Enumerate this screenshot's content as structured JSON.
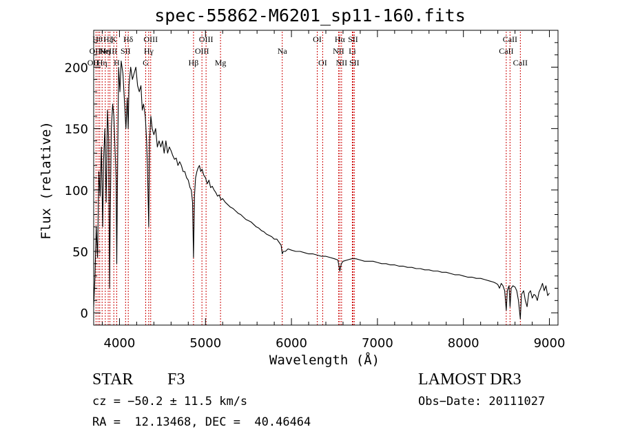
{
  "chart_data": {
    "type": "line",
    "title": "spec-55862-M6201_sp11-160.fits",
    "xlabel": "Wavelength (Å)",
    "ylabel": "Flux (relative)",
    "xlim": [
      3700,
      9100
    ],
    "ylim": [
      -10,
      230
    ],
    "xticks": [
      4000,
      5000,
      6000,
      7000,
      8000,
      9000
    ],
    "yticks": [
      0,
      50,
      100,
      150,
      200
    ],
    "x_minor_step": 200,
    "y_minor_step": 10,
    "series": [
      {
        "name": "flux",
        "points": [
          [
            3700,
            5
          ],
          [
            3715,
            30
          ],
          [
            3730,
            70
          ],
          [
            3745,
            45
          ],
          [
            3760,
            115
          ],
          [
            3775,
            95
          ],
          [
            3790,
            135
          ],
          [
            3805,
            70
          ],
          [
            3815,
            125
          ],
          [
            3830,
            150
          ],
          [
            3845,
            90
          ],
          [
            3860,
            165
          ],
          [
            3875,
            140
          ],
          [
            3885,
            20
          ],
          [
            3890,
            60
          ],
          [
            3905,
            150
          ],
          [
            3920,
            170
          ],
          [
            3935,
            160
          ],
          [
            3950,
            130
          ],
          [
            3960,
            110
          ],
          [
            3968,
            40
          ],
          [
            3975,
            95
          ],
          [
            3990,
            200
          ],
          [
            4005,
            180
          ],
          [
            4020,
            205
          ],
          [
            4040,
            195
          ],
          [
            4060,
            170
          ],
          [
            4075,
            150
          ],
          [
            4090,
            175
          ],
          [
            4101,
            150
          ],
          [
            4110,
            185
          ],
          [
            4130,
            200
          ],
          [
            4150,
            190
          ],
          [
            4170,
            195
          ],
          [
            4190,
            200
          ],
          [
            4210,
            185
          ],
          [
            4230,
            180
          ],
          [
            4250,
            185
          ],
          [
            4265,
            165
          ],
          [
            4280,
            170
          ],
          [
            4300,
            160
          ],
          [
            4315,
            140
          ],
          [
            4325,
            120
          ],
          [
            4340,
            70
          ],
          [
            4350,
            140
          ],
          [
            4365,
            160
          ],
          [
            4380,
            150
          ],
          [
            4400,
            145
          ],
          [
            4420,
            150
          ],
          [
            4440,
            135
          ],
          [
            4460,
            140
          ],
          [
            4480,
            135
          ],
          [
            4500,
            140
          ],
          [
            4520,
            130
          ],
          [
            4540,
            140
          ],
          [
            4560,
            130
          ],
          [
            4580,
            135
          ],
          [
            4600,
            132
          ],
          [
            4620,
            128
          ],
          [
            4640,
            125
          ],
          [
            4660,
            126
          ],
          [
            4680,
            120
          ],
          [
            4700,
            123
          ],
          [
            4720,
            120
          ],
          [
            4740,
            115
          ],
          [
            4760,
            115
          ],
          [
            4780,
            110
          ],
          [
            4800,
            108
          ],
          [
            4820,
            102
          ],
          [
            4835,
            100
          ],
          [
            4850,
            90
          ],
          [
            4861,
            45
          ],
          [
            4872,
            95
          ],
          [
            4885,
            110
          ],
          [
            4900,
            115
          ],
          [
            4915,
            118
          ],
          [
            4930,
            120
          ],
          [
            4945,
            115
          ],
          [
            4960,
            117
          ],
          [
            4980,
            112
          ],
          [
            5000,
            110
          ],
          [
            5020,
            105
          ],
          [
            5040,
            108
          ],
          [
            5060,
            102
          ],
          [
            5080,
            103
          ],
          [
            5100,
            100
          ],
          [
            5120,
            98
          ],
          [
            5140,
            95
          ],
          [
            5160,
            96
          ],
          [
            5180,
            92
          ],
          [
            5200,
            93
          ],
          [
            5230,
            90
          ],
          [
            5260,
            88
          ],
          [
            5290,
            86
          ],
          [
            5320,
            85
          ],
          [
            5350,
            83
          ],
          [
            5380,
            81
          ],
          [
            5410,
            80
          ],
          [
            5440,
            78
          ],
          [
            5470,
            76
          ],
          [
            5500,
            75
          ],
          [
            5530,
            74
          ],
          [
            5560,
            72
          ],
          [
            5590,
            70
          ],
          [
            5620,
            69
          ],
          [
            5650,
            67
          ],
          [
            5680,
            66
          ],
          [
            5710,
            64
          ],
          [
            5740,
            63
          ],
          [
            5770,
            62
          ],
          [
            5800,
            60
          ],
          [
            5830,
            60
          ],
          [
            5860,
            57
          ],
          [
            5880,
            55
          ],
          [
            5893,
            48
          ],
          [
            5905,
            50
          ],
          [
            5930,
            50
          ],
          [
            5960,
            52
          ],
          [
            6000,
            51
          ],
          [
            6050,
            50
          ],
          [
            6100,
            50
          ],
          [
            6150,
            49
          ],
          [
            6200,
            48
          ],
          [
            6250,
            48
          ],
          [
            6300,
            47
          ],
          [
            6350,
            46
          ],
          [
            6400,
            46
          ],
          [
            6450,
            45
          ],
          [
            6500,
            44
          ],
          [
            6540,
            43
          ],
          [
            6563,
            34
          ],
          [
            6580,
            40
          ],
          [
            6600,
            42
          ],
          [
            6650,
            43
          ],
          [
            6700,
            44
          ],
          [
            6750,
            44
          ],
          [
            6800,
            43
          ],
          [
            6850,
            42
          ],
          [
            6900,
            42
          ],
          [
            6950,
            42
          ],
          [
            7000,
            41
          ],
          [
            7050,
            40
          ],
          [
            7100,
            40
          ],
          [
            7150,
            39
          ],
          [
            7200,
            39
          ],
          [
            7250,
            38
          ],
          [
            7300,
            38
          ],
          [
            7350,
            37
          ],
          [
            7400,
            37
          ],
          [
            7450,
            36
          ],
          [
            7500,
            36
          ],
          [
            7550,
            35
          ],
          [
            7600,
            35
          ],
          [
            7650,
            34
          ],
          [
            7700,
            34
          ],
          [
            7750,
            33
          ],
          [
            7800,
            33
          ],
          [
            7850,
            32
          ],
          [
            7900,
            31
          ],
          [
            7950,
            31
          ],
          [
            8000,
            30
          ],
          [
            8050,
            29
          ],
          [
            8100,
            29
          ],
          [
            8150,
            28
          ],
          [
            8200,
            28
          ],
          [
            8250,
            27
          ],
          [
            8300,
            26
          ],
          [
            8350,
            25
          ],
          [
            8380,
            24
          ],
          [
            8400,
            23
          ],
          [
            8420,
            20
          ],
          [
            8440,
            24
          ],
          [
            8460,
            22
          ],
          [
            8480,
            18
          ],
          [
            8498,
            2
          ],
          [
            8510,
            18
          ],
          [
            8530,
            22
          ],
          [
            8542,
            5
          ],
          [
            8555,
            20
          ],
          [
            8575,
            22
          ],
          [
            8600,
            21
          ],
          [
            8620,
            18
          ],
          [
            8640,
            10
          ],
          [
            8662,
            -5
          ],
          [
            8675,
            15
          ],
          [
            8700,
            18
          ],
          [
            8720,
            10
          ],
          [
            8740,
            5
          ],
          [
            8760,
            16
          ],
          [
            8780,
            18
          ],
          [
            8800,
            12
          ],
          [
            8820,
            15
          ],
          [
            8840,
            14
          ],
          [
            8860,
            10
          ],
          [
            8880,
            17
          ],
          [
            8900,
            20
          ],
          [
            8920,
            24
          ],
          [
            8940,
            18
          ],
          [
            8960,
            22
          ],
          [
            8980,
            14
          ],
          [
            9000,
            16
          ]
        ]
      }
    ],
    "lines": [
      {
        "wavelength": 3727,
        "label": "OII",
        "row": 2,
        "align": "right"
      },
      {
        "wavelength": 3750,
        "label": "OII",
        "row": 1,
        "align": "right"
      },
      {
        "wavelength": 3770,
        "label": "Hθ",
        "row": 0,
        "align": "right"
      },
      {
        "wavelength": 3798,
        "label": "Hη",
        "row": 2,
        "align": "center"
      },
      {
        "wavelength": 3835,
        "label": "Hη",
        "row": 1,
        "align": "center"
      },
      {
        "wavelength": 3869,
        "label": "NeIII",
        "row": 1,
        "align": "center"
      },
      {
        "wavelength": 3889,
        "label": "Hζ",
        "row": 0,
        "align": "right"
      },
      {
        "wavelength": 3934,
        "label": "K",
        "row": 0,
        "align": "center"
      },
      {
        "wavelength": 3968,
        "label": "H",
        "row": 2,
        "align": "center"
      },
      {
        "wavelength": 4071,
        "label": "SII",
        "row": 1,
        "align": "center"
      },
      {
        "wavelength": 4102,
        "label": "Hδ",
        "row": 0,
        "align": "center"
      },
      {
        "wavelength": 4305,
        "label": "G",
        "row": 2,
        "align": "center"
      },
      {
        "wavelength": 4340,
        "label": "Hγ",
        "row": 1,
        "align": "center"
      },
      {
        "wavelength": 4363,
        "label": "OIII",
        "row": 0,
        "align": "center"
      },
      {
        "wavelength": 4861,
        "label": "Hβ",
        "row": 2,
        "align": "center"
      },
      {
        "wavelength": 4959,
        "label": "OIII",
        "row": 1,
        "align": "center"
      },
      {
        "wavelength": 5007,
        "label": "OIII",
        "row": 0,
        "align": "center"
      },
      {
        "wavelength": 5175,
        "label": "Mg",
        "row": 2,
        "align": "center"
      },
      {
        "wavelength": 5893,
        "label": "Na",
        "row": 1,
        "align": "center"
      },
      {
        "wavelength": 6300,
        "label": "OI",
        "row": 0,
        "align": "center"
      },
      {
        "wavelength": 6363,
        "label": "OI",
        "row": 2,
        "align": "center"
      },
      {
        "wavelength": 6548,
        "label": "NII",
        "row": 1,
        "align": "center"
      },
      {
        "wavelength": 6563,
        "label": "Hα",
        "row": 0,
        "align": "center"
      },
      {
        "wavelength": 6583,
        "label": "NII",
        "row": 2,
        "align": "center"
      },
      {
        "wavelength": 6708,
        "label": "Li",
        "row": 1,
        "align": "center"
      },
      {
        "wavelength": 6716,
        "label": "SII",
        "row": 0,
        "align": "center"
      },
      {
        "wavelength": 6731,
        "label": "SII",
        "row": 2,
        "align": "center"
      },
      {
        "wavelength": 8498,
        "label": "CaII",
        "row": 1,
        "align": "center"
      },
      {
        "wavelength": 8542,
        "label": "CaII",
        "row": 0,
        "align": "center"
      },
      {
        "wavelength": 8662,
        "label": "CaII",
        "row": 2,
        "align": "center"
      }
    ]
  },
  "info": {
    "class_label": "STAR",
    "subclass": "F3",
    "survey": "LAMOST DR3",
    "cz": "cz = −50.2 ± 11.5 km/s",
    "obs_date": "Obs−Date: 20111027",
    "coords": "RA =  12.13468, DEC =  40.46464"
  },
  "colors": {
    "spectrum": "#000000",
    "line_markers": "#cc0000",
    "axes": "#000000"
  }
}
